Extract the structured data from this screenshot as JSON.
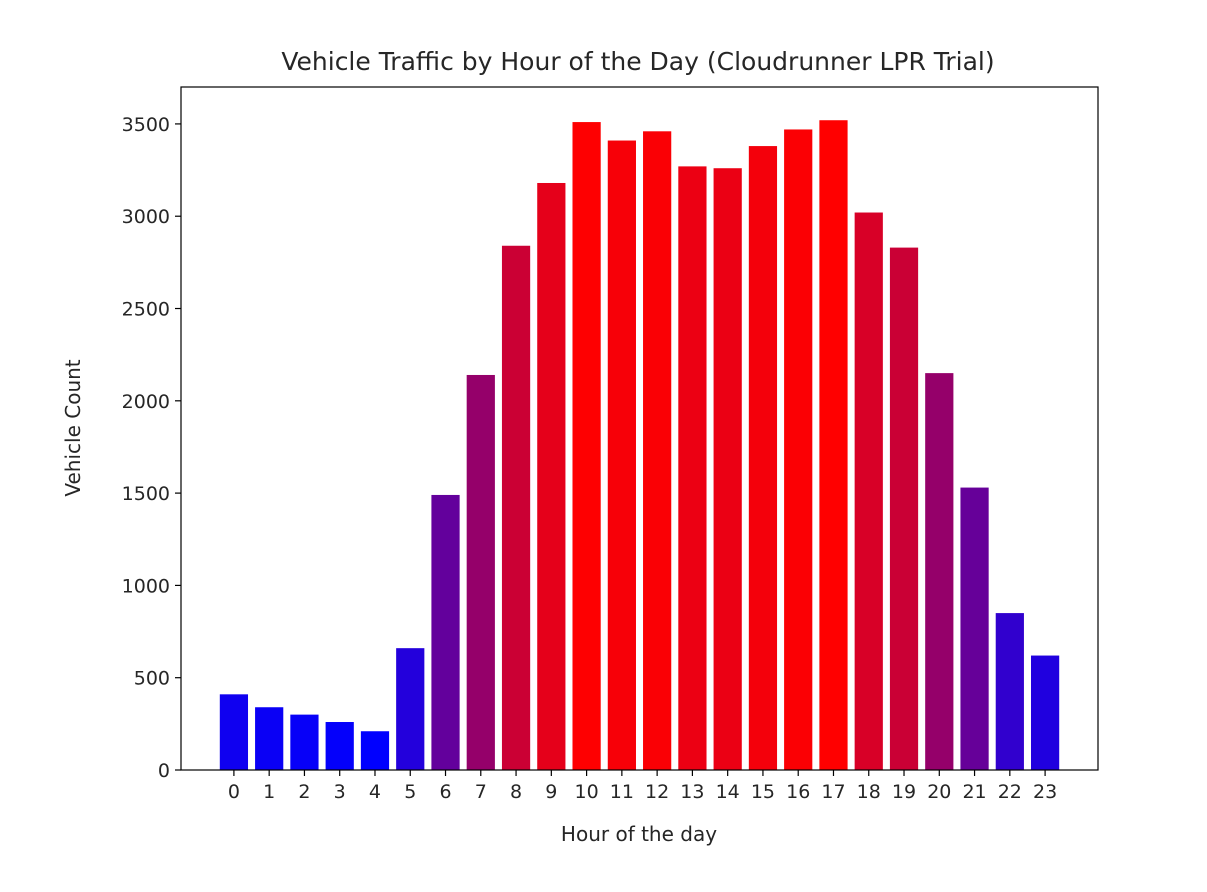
{
  "chart_data": {
    "type": "bar",
    "title": "Vehicle Traffic by Hour of the Day (Cloudrunner LPR Trial)",
    "xlabel": "Hour of the day",
    "ylabel": "Vehicle Count",
    "categories": [
      "0",
      "1",
      "2",
      "3",
      "4",
      "5",
      "6",
      "7",
      "8",
      "9",
      "10",
      "11",
      "12",
      "13",
      "14",
      "15",
      "16",
      "17",
      "18",
      "19",
      "20",
      "21",
      "22",
      "23"
    ],
    "values": [
      410,
      340,
      300,
      260,
      210,
      660,
      1490,
      2140,
      2840,
      3180,
      3510,
      3410,
      3460,
      3270,
      3260,
      3380,
      3470,
      3520,
      3020,
      2830,
      2150,
      1530,
      850,
      620
    ],
    "ylim": [
      0,
      3700
    ],
    "yticks": [
      0,
      500,
      1000,
      1500,
      2000,
      2500,
      3000,
      3500
    ],
    "color_scale": {
      "low": "#0000ff",
      "high": "#ff0000",
      "min": 210,
      "max": 3520
    },
    "grid": false,
    "legend": "none"
  }
}
